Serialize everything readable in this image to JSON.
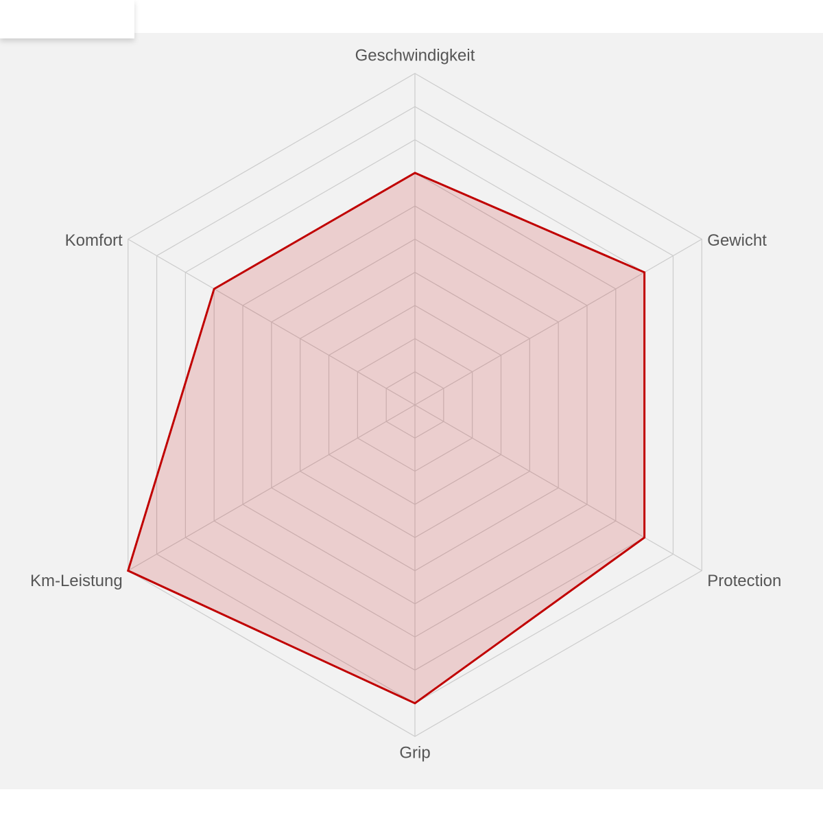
{
  "chart_data": {
    "type": "radar",
    "categories": [
      "Geschwindigkeit",
      "Gewicht",
      "Protection",
      "Grip",
      "Km-Leistung",
      "Komfort"
    ],
    "series": [
      {
        "color": "#c00000",
        "values": [
          7,
          8,
          8,
          9,
          10,
          7
        ]
      }
    ],
    "rlim": [
      0,
      10
    ],
    "rticks": [
      1,
      2,
      3,
      4,
      5,
      6,
      7,
      8,
      9,
      10
    ],
    "grid": true
  }
}
